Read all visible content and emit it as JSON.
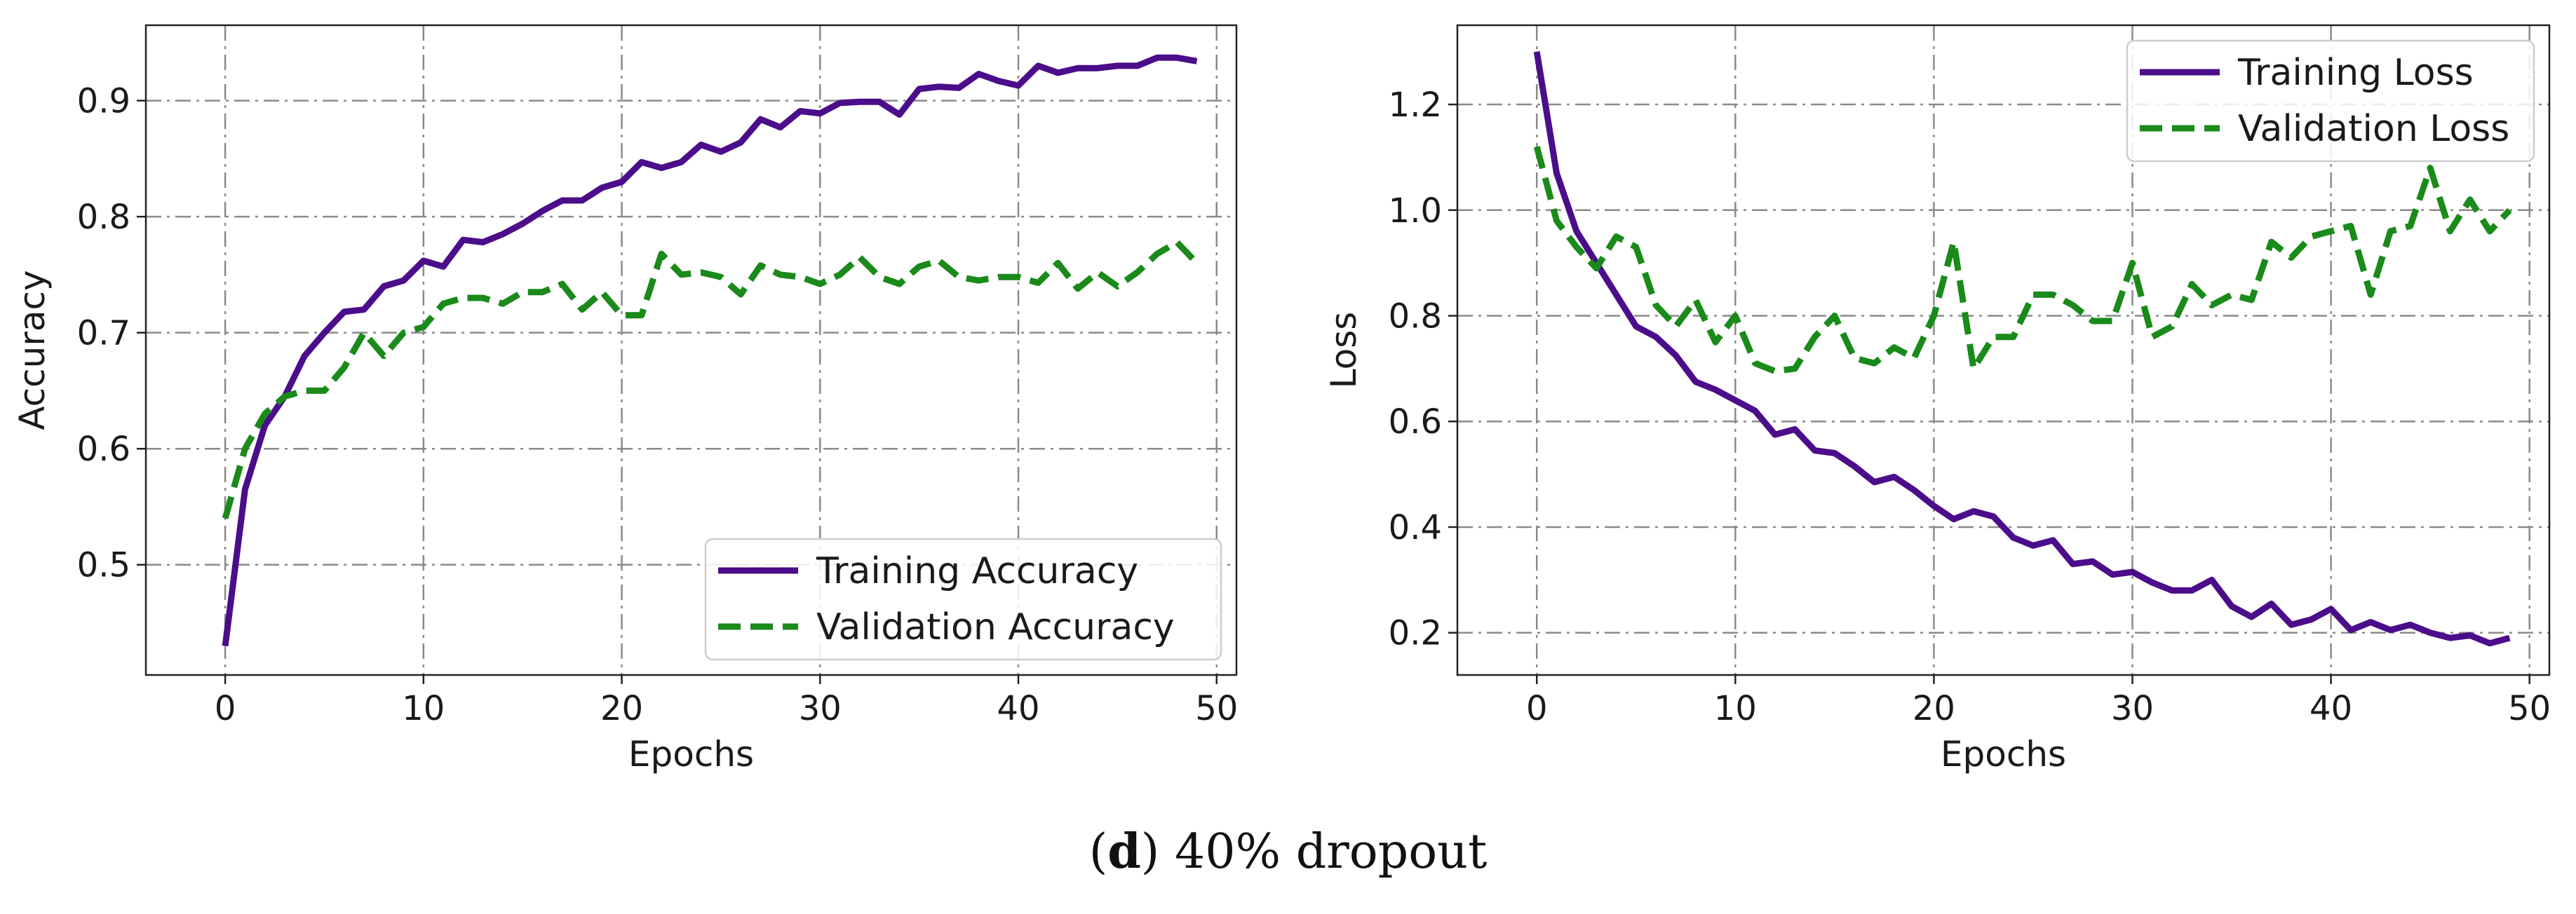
{
  "caption": {
    "label": "d",
    "text": "40% dropout"
  },
  "chart_data": [
    {
      "type": "line",
      "title": "",
      "xlabel": "Epochs",
      "ylabel": "Accuracy",
      "xlim": [
        -4,
        51
      ],
      "ylim": [
        0.405,
        0.965
      ],
      "xticks": [
        "0",
        "10",
        "20",
        "30",
        "40",
        "50"
      ],
      "yticks": [
        "0.5",
        "0.6",
        "0.7",
        "0.8",
        "0.9"
      ],
      "grid": true,
      "legend_position": "bottom-right",
      "series": [
        {
          "name": "Training Accuracy",
          "color": "#4b0d8a",
          "style": "solid",
          "x": [
            0,
            1,
            2,
            3,
            4,
            5,
            6,
            7,
            8,
            9,
            10,
            11,
            12,
            13,
            14,
            15,
            16,
            17,
            18,
            19,
            20,
            21,
            22,
            23,
            24,
            25,
            26,
            27,
            28,
            29,
            30,
            31,
            32,
            33,
            34,
            35,
            36,
            37,
            38,
            39,
            40,
            41,
            42,
            43,
            44,
            45,
            46,
            47,
            48,
            49
          ],
          "values": [
            0.43,
            0.565,
            0.62,
            0.645,
            0.68,
            0.7,
            0.718,
            0.72,
            0.74,
            0.745,
            0.762,
            0.757,
            0.78,
            0.778,
            0.785,
            0.794,
            0.805,
            0.814,
            0.814,
            0.825,
            0.83,
            0.847,
            0.842,
            0.847,
            0.862,
            0.856,
            0.864,
            0.884,
            0.877,
            0.891,
            0.889,
            0.898,
            0.899,
            0.899,
            0.888,
            0.91,
            0.912,
            0.911,
            0.923,
            0.917,
            0.913,
            0.93,
            0.924,
            0.928,
            0.928,
            0.93,
            0.93,
            0.937,
            0.937,
            0.934
          ]
        },
        {
          "name": "Validation Accuracy",
          "color": "#1a8a1a",
          "style": "dashed",
          "x": [
            0,
            1,
            2,
            3,
            4,
            5,
            6,
            7,
            8,
            9,
            10,
            11,
            12,
            13,
            14,
            15,
            16,
            17,
            18,
            19,
            20,
            21,
            22,
            23,
            24,
            25,
            26,
            27,
            28,
            29,
            30,
            31,
            32,
            33,
            34,
            35,
            36,
            37,
            38,
            39,
            40,
            41,
            42,
            43,
            44,
            45,
            46,
            47,
            48,
            49
          ],
          "values": [
            0.54,
            0.6,
            0.63,
            0.645,
            0.65,
            0.65,
            0.67,
            0.7,
            0.68,
            0.7,
            0.705,
            0.725,
            0.73,
            0.73,
            0.725,
            0.735,
            0.735,
            0.742,
            0.72,
            0.735,
            0.715,
            0.715,
            0.768,
            0.75,
            0.752,
            0.748,
            0.733,
            0.758,
            0.75,
            0.748,
            0.742,
            0.75,
            0.765,
            0.748,
            0.742,
            0.757,
            0.762,
            0.748,
            0.745,
            0.748,
            0.748,
            0.743,
            0.76,
            0.738,
            0.752,
            0.74,
            0.752,
            0.768,
            0.778,
            0.76
          ]
        }
      ]
    },
    {
      "type": "line",
      "title": "",
      "xlabel": "Epochs",
      "ylabel": "Loss",
      "xlim": [
        -4,
        51
      ],
      "ylim": [
        0.12,
        1.35
      ],
      "xticks": [
        "0",
        "10",
        "20",
        "30",
        "40",
        "50"
      ],
      "yticks": [
        "0.2",
        "0.4",
        "0.6",
        "0.8",
        "1.0",
        "1.2"
      ],
      "grid": true,
      "legend_position": "top-right",
      "series": [
        {
          "name": "Training Loss",
          "color": "#4b0d8a",
          "style": "solid",
          "x": [
            0,
            1,
            2,
            3,
            4,
            5,
            6,
            7,
            8,
            9,
            10,
            11,
            12,
            13,
            14,
            15,
            16,
            17,
            18,
            19,
            20,
            21,
            22,
            23,
            24,
            25,
            26,
            27,
            28,
            29,
            30,
            31,
            32,
            33,
            34,
            35,
            36,
            37,
            38,
            39,
            40,
            41,
            42,
            43,
            44,
            45,
            46,
            47,
            48,
            49
          ],
          "values": [
            1.3,
            1.07,
            0.96,
            0.9,
            0.84,
            0.78,
            0.76,
            0.725,
            0.675,
            0.66,
            0.64,
            0.62,
            0.575,
            0.585,
            0.545,
            0.54,
            0.515,
            0.485,
            0.495,
            0.47,
            0.44,
            0.415,
            0.43,
            0.42,
            0.38,
            0.365,
            0.375,
            0.33,
            0.335,
            0.31,
            0.315,
            0.295,
            0.28,
            0.28,
            0.3,
            0.25,
            0.23,
            0.255,
            0.215,
            0.225,
            0.245,
            0.205,
            0.22,
            0.205,
            0.215,
            0.2,
            0.19,
            0.195,
            0.18,
            0.19
          ]
        },
        {
          "name": "Validation Loss",
          "color": "#1a8a1a",
          "style": "dashed",
          "x": [
            0,
            1,
            2,
            3,
            4,
            5,
            6,
            7,
            8,
            9,
            10,
            11,
            12,
            13,
            14,
            15,
            16,
            17,
            18,
            19,
            20,
            21,
            22,
            23,
            24,
            25,
            26,
            27,
            28,
            29,
            30,
            31,
            32,
            33,
            34,
            35,
            36,
            37,
            38,
            39,
            40,
            41,
            42,
            43,
            44,
            45,
            46,
            47,
            48,
            49
          ],
          "values": [
            1.12,
            0.98,
            0.93,
            0.89,
            0.95,
            0.93,
            0.82,
            0.78,
            0.83,
            0.75,
            0.8,
            0.71,
            0.695,
            0.7,
            0.76,
            0.8,
            0.72,
            0.71,
            0.74,
            0.72,
            0.8,
            0.94,
            0.7,
            0.76,
            0.76,
            0.84,
            0.84,
            0.82,
            0.79,
            0.79,
            0.9,
            0.76,
            0.78,
            0.86,
            0.82,
            0.84,
            0.83,
            0.94,
            0.91,
            0.95,
            0.96,
            0.97,
            0.84,
            0.96,
            0.97,
            1.08,
            0.96,
            1.02,
            0.96,
            1.0
          ]
        }
      ]
    }
  ]
}
